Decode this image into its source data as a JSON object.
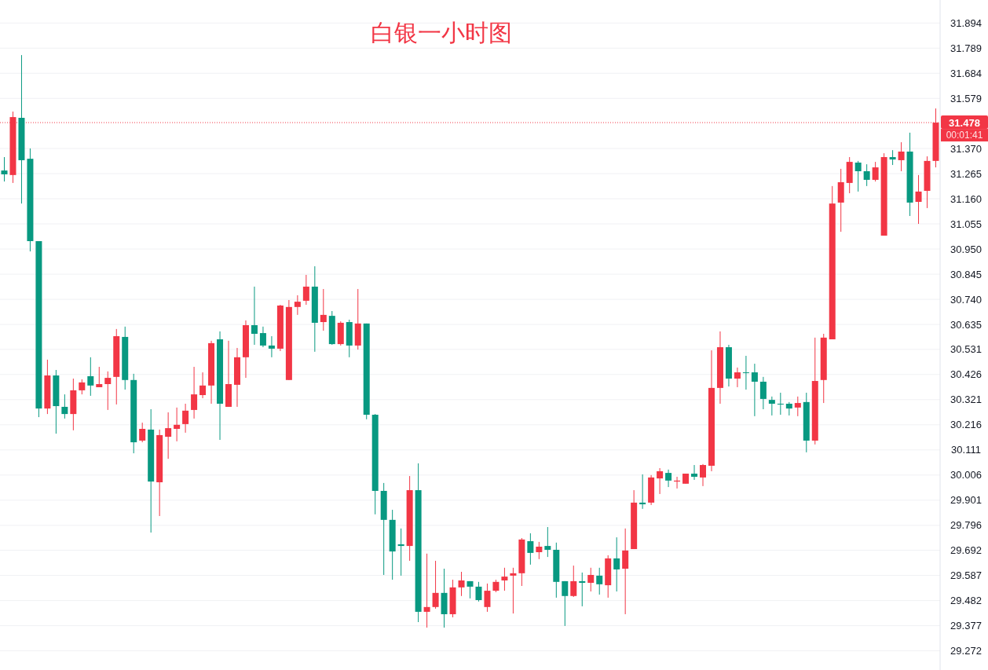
{
  "chart_data": {
    "type": "candlestick",
    "title": "白银一小时图",
    "categories": [
      null,
      null,
      null,
      null,
      null,
      null,
      null,
      null,
      null,
      null,
      null,
      null,
      null,
      null,
      null,
      null,
      null,
      null,
      null,
      null,
      null,
      null,
      null,
      null,
      null,
      null,
      null,
      null,
      null,
      null,
      null,
      null,
      null,
      null,
      null,
      null,
      null,
      null,
      null,
      null,
      null,
      null,
      null,
      null,
      null,
      null,
      null,
      null,
      null,
      null,
      null,
      null,
      null,
      null,
      null,
      null,
      null,
      null,
      null,
      null,
      null,
      null,
      null,
      null,
      null,
      null,
      null,
      null,
      null,
      null,
      null,
      null,
      null,
      null,
      null,
      null,
      null,
      null,
      null,
      null,
      null,
      null,
      null,
      null,
      null,
      null,
      null,
      null,
      null,
      null,
      null,
      null,
      null,
      null,
      null,
      null,
      null,
      null,
      null,
      null,
      null,
      null,
      null,
      null,
      null,
      null,
      null,
      null,
      null
    ],
    "ohlc": [
      [
        31.278,
        31.334,
        31.232,
        31.262
      ],
      [
        31.259,
        31.524,
        31.226,
        31.501
      ],
      [
        31.498,
        31.76,
        31.14,
        31.321
      ],
      [
        31.327,
        31.37,
        30.94,
        30.983
      ],
      [
        30.983,
        30.983,
        30.248,
        30.284
      ],
      [
        30.284,
        30.488,
        30.261,
        30.422
      ],
      [
        30.422,
        30.445,
        30.179,
        30.294
      ],
      [
        30.291,
        30.343,
        30.242,
        30.261
      ],
      [
        30.261,
        30.409,
        30.193,
        30.36
      ],
      [
        30.36,
        30.406,
        30.343,
        30.393
      ],
      [
        30.419,
        30.498,
        30.337,
        30.38
      ],
      [
        30.373,
        30.458,
        30.373,
        30.386
      ],
      [
        30.386,
        30.439,
        30.278,
        30.412
      ],
      [
        30.416,
        30.616,
        30.301,
        30.586
      ],
      [
        30.583,
        30.626,
        30.363,
        30.403
      ],
      [
        30.403,
        30.429,
        30.097,
        30.143
      ],
      [
        30.15,
        30.225,
        30.143,
        30.199
      ],
      [
        30.196,
        30.281,
        29.766,
        29.979
      ],
      [
        29.976,
        30.196,
        29.835,
        30.173
      ],
      [
        30.166,
        30.268,
        30.074,
        30.202
      ],
      [
        30.199,
        30.288,
        30.147,
        30.216
      ],
      [
        30.219,
        30.304,
        30.183,
        30.275
      ],
      [
        30.278,
        30.458,
        30.242,
        30.343
      ],
      [
        30.34,
        30.435,
        30.327,
        30.38
      ],
      [
        30.38,
        30.567,
        30.304,
        30.557
      ],
      [
        30.573,
        30.606,
        30.153,
        30.304
      ],
      [
        30.291,
        30.567,
        30.291,
        30.386
      ],
      [
        30.383,
        30.537,
        30.291,
        30.498
      ],
      [
        30.498,
        30.652,
        30.412,
        30.632
      ],
      [
        30.632,
        30.793,
        30.55,
        30.596
      ],
      [
        30.599,
        30.626,
        30.54,
        30.547
      ],
      [
        30.547,
        30.586,
        30.498,
        30.534
      ],
      [
        30.534,
        30.717,
        30.524,
        30.714
      ],
      [
        30.403,
        30.737,
        30.403,
        30.708
      ],
      [
        30.708,
        30.757,
        30.675,
        30.73
      ],
      [
        30.734,
        30.842,
        30.717,
        30.793
      ],
      [
        30.793,
        30.878,
        30.521,
        30.642
      ],
      [
        30.645,
        30.783,
        30.609,
        30.675
      ],
      [
        30.671,
        30.691,
        30.55,
        30.553
      ],
      [
        30.553,
        30.648,
        30.547,
        30.642
      ],
      [
        30.645,
        30.655,
        30.498,
        30.547
      ],
      [
        30.547,
        30.783,
        30.53,
        30.639
      ],
      [
        30.639,
        30.639,
        30.239,
        30.258
      ],
      [
        30.258,
        30.261,
        29.842,
        29.94
      ],
      [
        29.94,
        29.973,
        29.589,
        29.819
      ],
      [
        29.819,
        29.861,
        29.569,
        29.687
      ],
      [
        29.717,
        29.783,
        29.586,
        29.71
      ],
      [
        29.71,
        30.002,
        29.648,
        29.943
      ],
      [
        29.943,
        30.055,
        29.392,
        29.435
      ],
      [
        29.435,
        29.678,
        29.369,
        29.455
      ],
      [
        29.455,
        29.648,
        29.448,
        29.514
      ],
      [
        29.514,
        29.615,
        29.369,
        29.425
      ],
      [
        29.425,
        29.569,
        29.412,
        29.537
      ],
      [
        29.537,
        29.602,
        29.501,
        29.566
      ],
      [
        29.563,
        29.563,
        29.491,
        29.54
      ],
      [
        29.54,
        29.56,
        29.478,
        29.484
      ],
      [
        29.455,
        29.553,
        29.435,
        29.523
      ],
      [
        29.523,
        29.569,
        29.517,
        29.56
      ],
      [
        29.566,
        29.619,
        29.523,
        29.582
      ],
      [
        29.586,
        29.619,
        29.428,
        29.596
      ],
      [
        29.596,
        29.743,
        29.543,
        29.737
      ],
      [
        29.73,
        29.763,
        29.632,
        29.681
      ],
      [
        29.684,
        29.727,
        29.655,
        29.707
      ],
      [
        29.71,
        29.789,
        29.664,
        29.694
      ],
      [
        29.694,
        29.724,
        29.494,
        29.56
      ],
      [
        29.563,
        29.563,
        29.376,
        29.501
      ],
      [
        29.501,
        29.628,
        29.497,
        29.563
      ],
      [
        29.563,
        29.599,
        29.458,
        29.556
      ],
      [
        29.556,
        29.619,
        29.52,
        29.589
      ],
      [
        29.586,
        29.619,
        29.507,
        29.55
      ],
      [
        29.546,
        29.671,
        29.494,
        29.658
      ],
      [
        29.658,
        29.746,
        29.52,
        29.612
      ],
      [
        29.615,
        29.783,
        29.425,
        29.691
      ],
      [
        29.697,
        29.943,
        29.697,
        29.891
      ],
      [
        29.891,
        30.009,
        29.865,
        29.884
      ],
      [
        29.891,
        30.006,
        29.881,
        29.996
      ],
      [
        29.992,
        30.035,
        29.927,
        30.022
      ],
      [
        30.015,
        30.029,
        29.956,
        29.983
      ],
      [
        29.979,
        29.999,
        29.95,
        29.983
      ],
      [
        29.97,
        30.012,
        29.97,
        30.012
      ],
      [
        30.012,
        30.048,
        29.986,
        29.999
      ],
      [
        29.996,
        30.052,
        29.96,
        30.048
      ],
      [
        30.045,
        30.527,
        30.022,
        30.37
      ],
      [
        30.37,
        30.606,
        30.304,
        30.54
      ],
      [
        30.54,
        30.55,
        30.376,
        30.409
      ],
      [
        30.409,
        30.455,
        30.373,
        30.435
      ],
      [
        30.435,
        30.504,
        30.363,
        30.432
      ],
      [
        30.435,
        30.471,
        30.252,
        30.396
      ],
      [
        30.396,
        30.416,
        30.281,
        30.324
      ],
      [
        30.32,
        30.334,
        30.255,
        30.304
      ],
      [
        30.304,
        30.35,
        30.258,
        30.301
      ],
      [
        30.304,
        30.311,
        30.255,
        30.284
      ],
      [
        30.288,
        30.334,
        30.252,
        30.307
      ],
      [
        30.311,
        30.35,
        30.101,
        30.15
      ],
      [
        30.15,
        30.58,
        30.134,
        30.399
      ],
      [
        30.403,
        30.596,
        30.307,
        30.58
      ],
      [
        30.573,
        31.213,
        30.573,
        31.14
      ],
      [
        31.144,
        31.285,
        31.022,
        31.229
      ],
      [
        31.226,
        31.334,
        31.183,
        31.314
      ],
      [
        31.311,
        31.318,
        31.19,
        31.275
      ],
      [
        31.275,
        31.304,
        31.213,
        31.239
      ],
      [
        31.239,
        31.314,
        31.232,
        31.291
      ],
      [
        31.006,
        31.35,
        31.006,
        31.334
      ],
      [
        31.334,
        31.363,
        31.301,
        31.324
      ],
      [
        31.321,
        31.396,
        31.275,
        31.357
      ],
      [
        31.357,
        31.436,
        31.088,
        31.144
      ],
      [
        31.147,
        31.259,
        31.055,
        31.19
      ],
      [
        31.193,
        31.337,
        31.121,
        31.318
      ],
      [
        31.318,
        31.537,
        31.291,
        31.478
      ]
    ],
    "ylim": [
      29.192,
      31.99
    ],
    "yticks": [
      29.272,
      29.377,
      29.482,
      29.587,
      29.692,
      29.796,
      29.901,
      30.006,
      30.111,
      30.216,
      30.321,
      30.426,
      30.531,
      30.635,
      {
        "value": 30.74,
        "label": "30.740"
      },
      30.845,
      {
        "value": 30.95,
        "label": "30.950"
      },
      31.055,
      {
        "value": 31.16,
        "label": "31.160"
      },
      31.265,
      {
        "value": 31.37,
        "label": "31.370"
      },
      31.579,
      31.684,
      31.789,
      31.894
    ],
    "grid": "y",
    "ref_lines": [
      {
        "axis": "y",
        "value": 31.478,
        "label": "31.478",
        "color": "#f23645",
        "line_style": "dotted"
      }
    ],
    "annotations": [
      "00:01:41"
    ],
    "colors": [
      "#089981",
      "#f23645",
      "#089981",
      "#089981",
      "#089981",
      "#f23645",
      "#089981",
      "#089981",
      "#f23645",
      "#f23645",
      "#089981",
      "#f23645",
      "#f23645",
      "#f23645",
      "#089981",
      "#089981",
      "#f23645",
      "#089981",
      "#f23645",
      "#f23645",
      "#f23645",
      "#f23645",
      "#f23645",
      "#f23645",
      "#f23645",
      "#089981",
      "#f23645",
      "#f23645",
      "#f23645",
      "#089981",
      "#089981",
      "#089981",
      "#f23645",
      "#f23645",
      "#f23645",
      "#f23645",
      "#089981",
      "#f23645",
      "#089981",
      "#f23645",
      "#089981",
      "#f23645",
      "#089981",
      "#089981",
      "#089981",
      "#089981",
      "#089981",
      "#f23645",
      "#089981",
      "#f23645",
      "#f23645",
      "#089981",
      "#f23645",
      "#f23645",
      "#089981",
      "#089981",
      "#f23645",
      "#f23645",
      "#f23645",
      "#f23645",
      "#f23645",
      "#089981",
      "#f23645",
      "#089981",
      "#089981",
      "#089981",
      "#f23645",
      "#089981",
      "#f23645",
      "#089981",
      "#f23645",
      "#089981",
      "#f23645",
      "#f23645",
      "#089981",
      "#f23645",
      "#f23645",
      "#089981",
      "#f23645",
      "#f23645",
      "#089981",
      "#f23645",
      "#f23645",
      "#f23645",
      "#089981",
      "#f23645",
      "#089981",
      "#089981",
      "#089981",
      "#089981",
      "#089981",
      "#089981",
      "#f23645",
      "#089981",
      "#f23645",
      "#f23645",
      "#f23645",
      "#f23645",
      "#f23645",
      "#089981",
      "#089981",
      "#f23645",
      "#f23645",
      "#089981",
      "#f23645",
      "#089981",
      "#f23645",
      "#f23645",
      "#f23645"
    ]
  }
}
